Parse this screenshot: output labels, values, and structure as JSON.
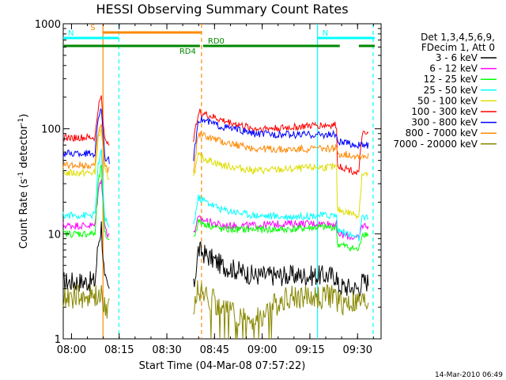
{
  "chart_data": {
    "type": "line",
    "title": "HESSI Observing Summary Count Rates",
    "xlabel": "Start Time (04-Mar-08 07:57:22)",
    "ylabel": "Count Rate (s",
    "ylabel_sup1": "-1",
    "ylabel_mid": " detector",
    "ylabel_sup2": "-1",
    "ylabel_end": ")",
    "x_unit": "minutes after 07:57:22",
    "xlim": [
      0,
      100
    ],
    "ylim": [
      1,
      1000
    ],
    "yscale": "log",
    "x_ticks": [
      {
        "t": 2.6,
        "label": "08:00"
      },
      {
        "t": 17.6,
        "label": "08:15"
      },
      {
        "t": 32.6,
        "label": "08:30"
      },
      {
        "t": 47.6,
        "label": "08:45"
      },
      {
        "t": 62.6,
        "label": "09:00"
      },
      {
        "t": 77.6,
        "label": "09:15"
      },
      {
        "t": 92.6,
        "label": "09:30"
      }
    ],
    "y_ticks": [
      {
        "v": 1,
        "label": "1"
      },
      {
        "v": 10,
        "label": "10"
      },
      {
        "v": 100,
        "label": "100"
      },
      {
        "v": 1000,
        "label": "1000"
      }
    ],
    "legend_header": [
      "Det 1,3,4,5,6,9,",
      "FDecim 1, Att 0"
    ],
    "legend_placement": "right",
    "series": [
      {
        "name": "3 - 6 keV",
        "color": "#000000",
        "points": [
          [
            0,
            3.5
          ],
          [
            10,
            3.5
          ],
          [
            11,
            8
          ],
          [
            12,
            12
          ],
          [
            13,
            3.5
          ],
          [
            14,
            3
          ],
          [
            41,
            3
          ],
          [
            42.5,
            7
          ],
          [
            50,
            5
          ],
          [
            60,
            4
          ],
          [
            75,
            4
          ],
          [
            86,
            4
          ],
          [
            86.2,
            3.2
          ],
          [
            93,
            3
          ],
          [
            94,
            3.5
          ],
          [
            96,
            3.5
          ]
        ]
      },
      {
        "name": "6 - 12 keV",
        "color": "#ff00ff",
        "points": [
          [
            0,
            12
          ],
          [
            10,
            12
          ],
          [
            11,
            25
          ],
          [
            12,
            35
          ],
          [
            13,
            12
          ],
          [
            14,
            10
          ],
          [
            41,
            10
          ],
          [
            42.5,
            14
          ],
          [
            50,
            12
          ],
          [
            60,
            12
          ],
          [
            70,
            12.5
          ],
          [
            80,
            12.5
          ],
          [
            86,
            12.5
          ],
          [
            86.2,
            10
          ],
          [
            93,
            9
          ],
          [
            94,
            12
          ],
          [
            96,
            12
          ]
        ]
      },
      {
        "name": "12 - 25 keV",
        "color": "#00ff00",
        "points": [
          [
            0,
            10
          ],
          [
            10,
            10
          ],
          [
            11,
            30
          ],
          [
            12,
            45
          ],
          [
            13,
            10
          ],
          [
            14,
            9
          ],
          [
            41,
            9
          ],
          [
            42.5,
            13
          ],
          [
            50,
            11
          ],
          [
            60,
            11
          ],
          [
            70,
            11
          ],
          [
            80,
            11.5
          ],
          [
            86,
            11.5
          ],
          [
            86.2,
            8
          ],
          [
            93,
            7
          ],
          [
            94,
            10
          ],
          [
            96,
            10
          ]
        ]
      },
      {
        "name": "25 - 50 keV",
        "color": "#00ffff",
        "points": [
          [
            0,
            15
          ],
          [
            10,
            15
          ],
          [
            11,
            45
          ],
          [
            12,
            60
          ],
          [
            13,
            14
          ],
          [
            14,
            12
          ],
          [
            41,
            12
          ],
          [
            42.5,
            22
          ],
          [
            50,
            17
          ],
          [
            60,
            15
          ],
          [
            70,
            14.5
          ],
          [
            80,
            15
          ],
          [
            86,
            15
          ],
          [
            86.2,
            11
          ],
          [
            93,
            9
          ],
          [
            94,
            14
          ],
          [
            96,
            14
          ]
        ]
      },
      {
        "name": "50 - 100 keV",
        "color": "#dddd00",
        "points": [
          [
            0,
            38
          ],
          [
            10,
            38
          ],
          [
            11,
            80
          ],
          [
            12,
            100
          ],
          [
            13,
            40
          ],
          [
            14,
            35
          ],
          [
            41,
            35
          ],
          [
            42.5,
            55
          ],
          [
            50,
            45
          ],
          [
            60,
            40
          ],
          [
            70,
            41
          ],
          [
            80,
            43
          ],
          [
            86,
            43
          ],
          [
            86.2,
            17
          ],
          [
            93,
            15
          ],
          [
            94,
            37
          ],
          [
            96,
            37
          ]
        ]
      },
      {
        "name": "100 - 300 keV",
        "color": "#ff0000",
        "points": [
          [
            0,
            82
          ],
          [
            10,
            82
          ],
          [
            11,
            160
          ],
          [
            12,
            200
          ],
          [
            13,
            80
          ],
          [
            14,
            75
          ],
          [
            41,
            75
          ],
          [
            42.5,
            145
          ],
          [
            50,
            120
          ],
          [
            60,
            100
          ],
          [
            70,
            102
          ],
          [
            80,
            108
          ],
          [
            86,
            108
          ],
          [
            86.2,
            45
          ],
          [
            93,
            38
          ],
          [
            94,
            88
          ],
          [
            96,
            88
          ]
        ]
      },
      {
        "name": "300 - 800 keV",
        "color": "#0000ff",
        "points": [
          [
            0,
            58
          ],
          [
            10,
            58
          ],
          [
            11,
            130
          ],
          [
            12,
            160
          ],
          [
            13,
            55
          ],
          [
            14,
            50
          ],
          [
            41,
            50
          ],
          [
            42.5,
            125
          ],
          [
            50,
            105
          ],
          [
            60,
            90
          ],
          [
            70,
            88
          ],
          [
            80,
            88
          ],
          [
            86,
            88
          ],
          [
            86.2,
            75
          ],
          [
            93,
            70
          ],
          [
            94,
            70
          ],
          [
            96,
            70
          ]
        ]
      },
      {
        "name": "800 - 7000 keV",
        "color": "#ff8800",
        "points": [
          [
            0,
            45
          ],
          [
            10,
            45
          ],
          [
            11,
            90
          ],
          [
            12,
            110
          ],
          [
            13,
            45
          ],
          [
            14,
            40
          ],
          [
            41,
            40
          ],
          [
            42.5,
            90
          ],
          [
            50,
            75
          ],
          [
            60,
            65
          ],
          [
            70,
            63
          ],
          [
            80,
            65
          ],
          [
            86,
            65
          ],
          [
            86.2,
            58
          ],
          [
            93,
            55
          ],
          [
            94,
            55
          ],
          [
            96,
            55
          ]
        ]
      },
      {
        "name": "7000 - 20000 keV",
        "color": "#888800",
        "points": [
          [
            0,
            2.5
          ],
          [
            10,
            2.5
          ],
          [
            11,
            2.5
          ],
          [
            12,
            2.5
          ],
          [
            13,
            2.2
          ],
          [
            14,
            2.0
          ],
          [
            41,
            2.0
          ],
          [
            42.5,
            3.0
          ],
          [
            50,
            2.0
          ],
          [
            60,
            1.5
          ],
          [
            70,
            2.5
          ],
          [
            80,
            2.5
          ],
          [
            86,
            2.6
          ],
          [
            86.2,
            2.2
          ],
          [
            93,
            2.2
          ],
          [
            94,
            2.2
          ],
          [
            96,
            2.2
          ]
        ]
      }
    ],
    "flags": [
      {
        "label": "S",
        "color": "#ff8800",
        "row": 0,
        "start": 12.5,
        "end": 43.5
      },
      {
        "label": "N",
        "color": "#00ffff",
        "row": 1,
        "start": 0,
        "end": 17.5
      },
      {
        "label": "N",
        "color": "#00ffff",
        "row": 1,
        "start": 80,
        "end": 98
      },
      {
        "label": "RD4",
        "color": "#008800",
        "row": 2,
        "start": 0,
        "end": 43
      },
      {
        "label": "RD0",
        "color": "#008800",
        "row": 2,
        "start": 44,
        "end": 87
      },
      {
        "label": "",
        "color": "#008800",
        "row": 2,
        "start": 93,
        "end": 98
      }
    ],
    "vlines": [
      {
        "t": 12.5,
        "color": "#ff8800",
        "style": "solid"
      },
      {
        "t": 17.5,
        "color": "#00ffff",
        "style": "dashed"
      },
      {
        "t": 43.5,
        "color": "#ff8800",
        "style": "dashed"
      },
      {
        "t": 80,
        "color": "#00ffff",
        "style": "solid"
      },
      {
        "t": 97.5,
        "color": "#00ffff",
        "style": "dashed"
      }
    ],
    "timestamp": "14-Mar-2010 06:49"
  }
}
